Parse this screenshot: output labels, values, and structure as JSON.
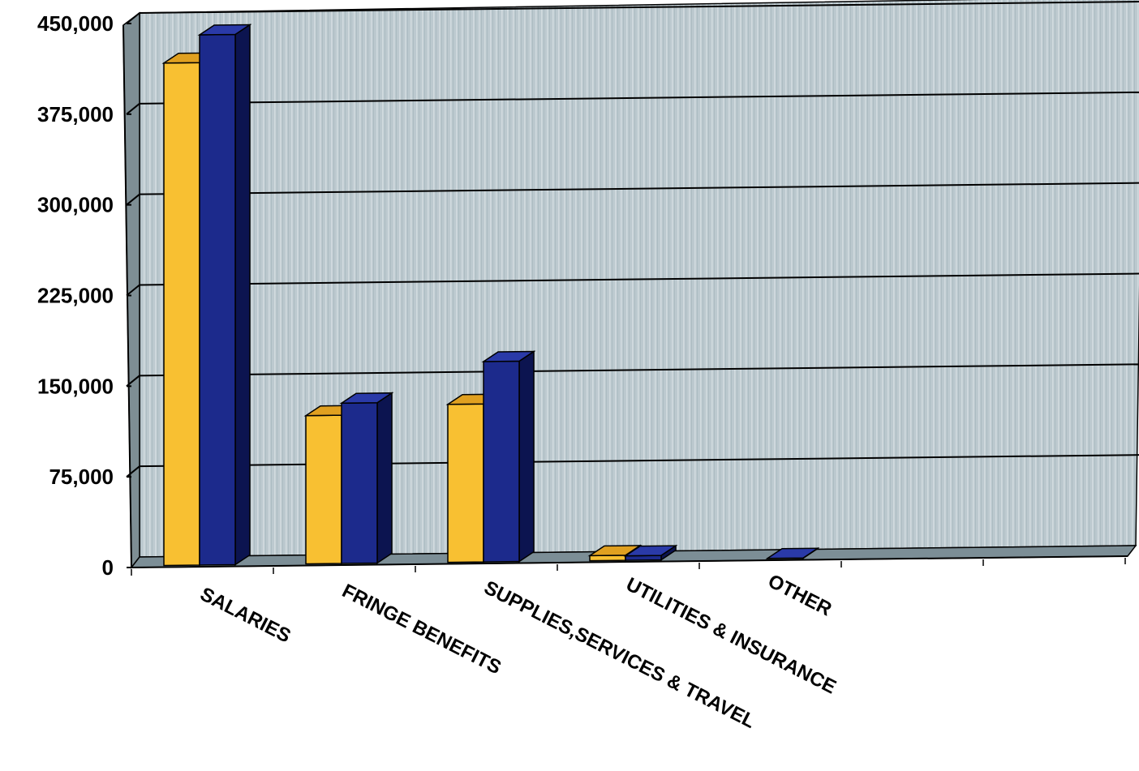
{
  "chart_data": {
    "type": "bar",
    "title": "",
    "xlabel": "",
    "ylabel": "",
    "categories": [
      "SALARIES",
      "FRINGE BENEFITS",
      "SUPPLIES,SERVICES & TRAVEL",
      "UTILITIES & INSURANCE",
      "OTHER"
    ],
    "series": [
      {
        "values": [
          417000,
          124000,
          132000,
          5500,
          0
        ]
      },
      {
        "values": [
          440000,
          134000,
          167000,
          5000,
          1500
        ]
      }
    ],
    "y_ticks": [
      "0",
      "75,000",
      "150,000",
      "225,000",
      "300,000",
      "375,000",
      "450,000"
    ],
    "ylim": [
      0,
      450000
    ],
    "grid": true,
    "legend": "none",
    "style": "3d-clustered-columns",
    "colors": {
      "series_1_front": "#f8c032",
      "series_1_top": "#e0a020",
      "series_1_side": "#b07a10",
      "series_2_front": "#1c2a8c",
      "series_2_top": "#2a3aa8",
      "series_2_side": "#0c1450",
      "back_wall": "#b8c6cc",
      "side_wall": "#7e8e94",
      "floor": "#7c8e96",
      "gridline": "#000000"
    }
  }
}
